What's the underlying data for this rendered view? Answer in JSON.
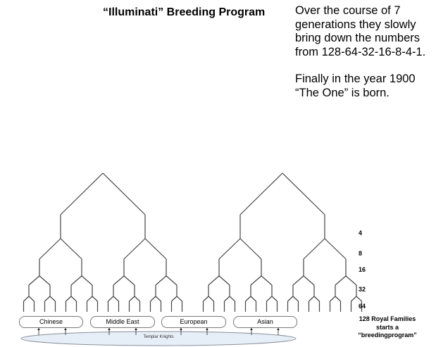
{
  "title": "“Illuminati” Breeding Program",
  "note": {
    "paragraph1": "Over the course of 7 generations they slowly bring down the numbers from 128-64-32-16-8-4-1.",
    "paragraph2": "Finally in the year 1900 “The One” is born."
  },
  "levels": [
    "4",
    "8",
    "16",
    "32",
    "64"
  ],
  "groups": [
    "Chinese",
    "Middle East",
    "European",
    "Asian"
  ],
  "base_label": "Templar Knights",
  "footer": {
    "line1": "128 Royal  Families",
    "line2": "starts a",
    "line3": "“breedingprogram”"
  },
  "colors": {
    "lines": "#444444",
    "ellipse_fill": "#e6eef7",
    "ellipse_stroke": "#8a9099"
  }
}
